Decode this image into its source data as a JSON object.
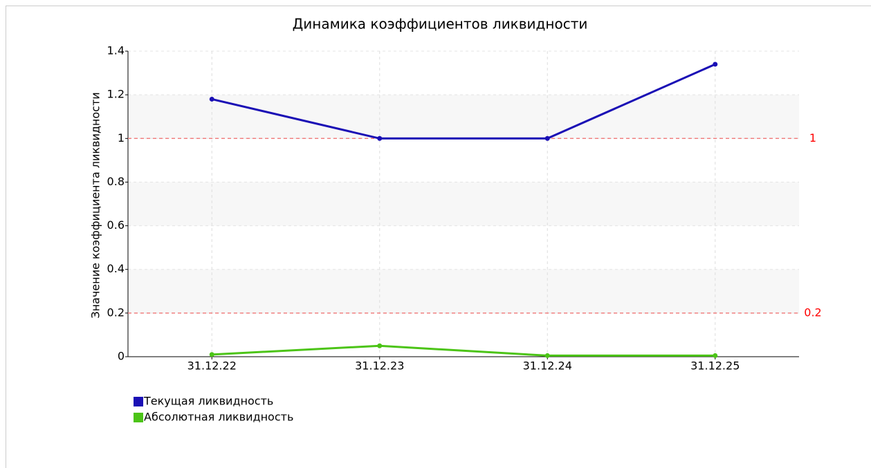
{
  "chart_data": {
    "type": "line",
    "title": "Динамика коэффициентов ликвидности",
    "y_label": "Значение коэффициента ликвидности",
    "categories": [
      "31.12.22",
      "31.12.23",
      "31.12.24",
      "31.12.25"
    ],
    "series": [
      {
        "name": "Текущая ликвидность",
        "color": "#1a0fb5",
        "values": [
          1.18,
          1.0,
          1.0,
          1.34
        ]
      },
      {
        "name": "Абсолютная ликвидность",
        "color": "#4cc417",
        "values": [
          0.01,
          0.05,
          0.005,
          0.005
        ]
      }
    ],
    "reference_lines": [
      1,
      0.2
    ],
    "ylim": [
      0,
      1.4
    ],
    "yticks": [
      0,
      0.2,
      0.4,
      0.6,
      0.8,
      1,
      1.2,
      1.4
    ],
    "grid": true,
    "legend": "bottom-left"
  }
}
